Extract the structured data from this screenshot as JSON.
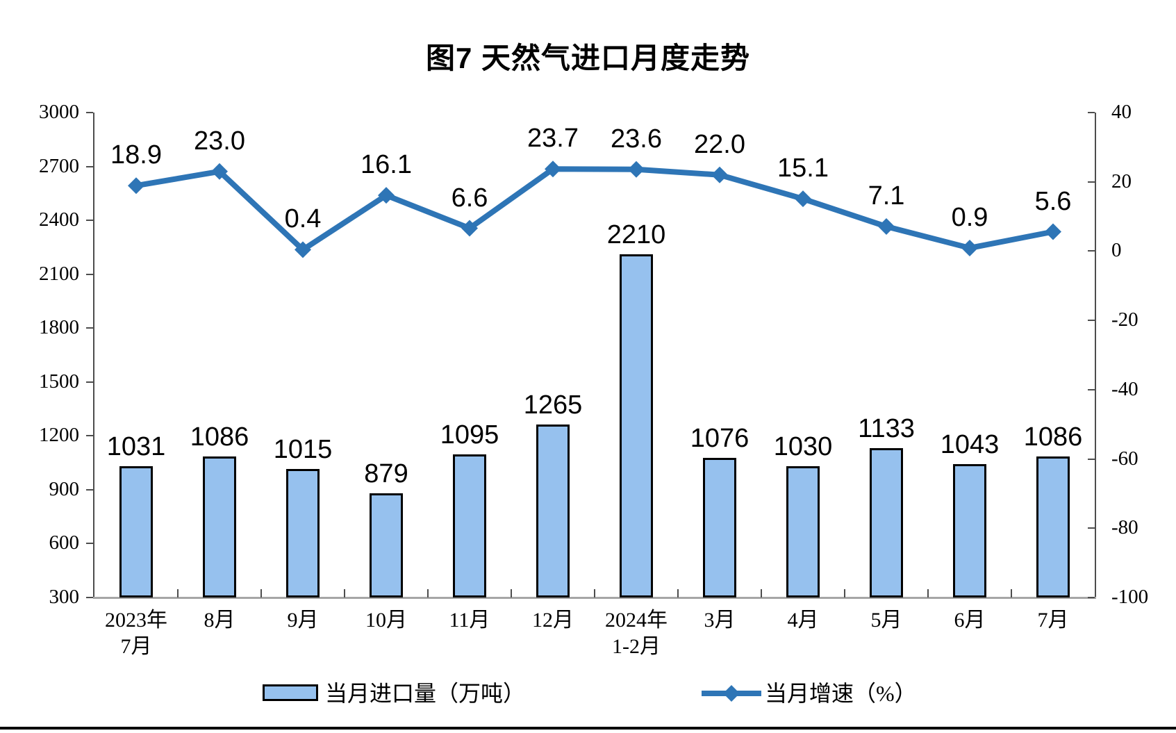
{
  "title": "图7 天然气进口月度走势",
  "chart_data": {
    "type": "bar+line",
    "categories": [
      "2023年\n7月",
      "8月",
      "9月",
      "10月",
      "11月",
      "12月",
      "2024年\n1-2月",
      "3月",
      "4月",
      "5月",
      "6月",
      "7月"
    ],
    "series": [
      {
        "name": "当月进口量（万吨）",
        "type": "bar",
        "axis": "left",
        "values": [
          1031,
          1086,
          1015,
          879,
          1095,
          1265,
          2210,
          1076,
          1030,
          1133,
          1043,
          1086
        ],
        "fill": "#96C1EE",
        "stroke": "#000000",
        "label_format": "integer"
      },
      {
        "name": "当月增速（%）",
        "type": "line",
        "axis": "right",
        "values": [
          18.9,
          23.0,
          0.4,
          16.1,
          6.6,
          23.7,
          23.6,
          22.0,
          15.1,
          7.1,
          0.9,
          5.6
        ],
        "color": "#2E75B6",
        "marker": "diamond",
        "label_format": "one_decimal"
      }
    ],
    "left_axis": {
      "min": 300,
      "max": 3000,
      "step": 300
    },
    "right_axis": {
      "min": -100,
      "max": 40,
      "step": 20
    },
    "grid": false,
    "legend_position": "bottom"
  }
}
